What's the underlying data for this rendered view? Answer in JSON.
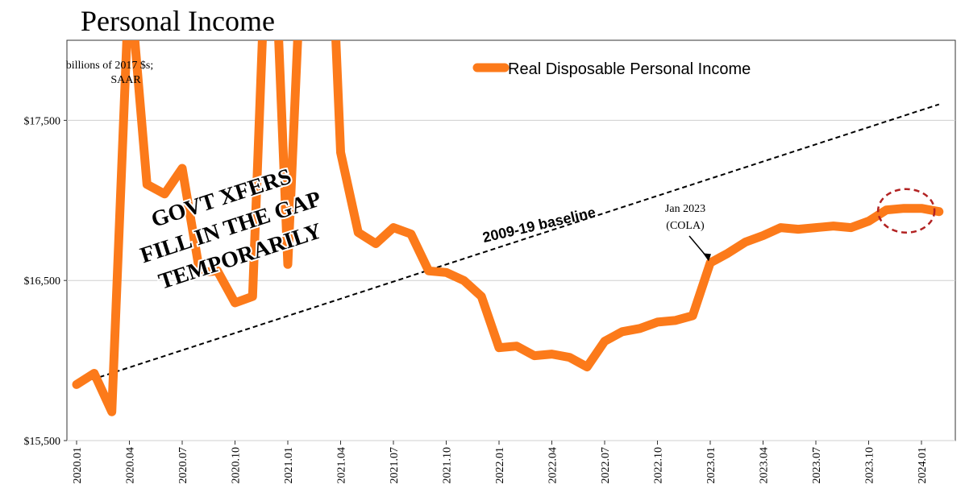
{
  "chart_data": {
    "type": "line",
    "title": "Personal Income",
    "units_note": [
      "billions of 2017 $s;",
      "SAAR"
    ],
    "ylim": [
      15500,
      18000
    ],
    "y_ticks": [
      15500,
      16500,
      17500
    ],
    "y_tick_labels": [
      "$15,500",
      "$16,500",
      "$17,500"
    ],
    "x_tick_labels": [
      "2020.01",
      "2020.04",
      "2020.07",
      "2020.10",
      "2021.01",
      "2021.04",
      "2021.07",
      "2021.10",
      "2022.01",
      "2022.04",
      "2022.07",
      "2022.10",
      "2023.01",
      "2023.04",
      "2023.07",
      "2023.10",
      "2024.01"
    ],
    "grid": "horizontal",
    "legend_position": "top-right",
    "series": [
      {
        "name": "Real Disposable Personal Income",
        "color": "#fc7a1a",
        "x": [
          "2020.01",
          "2020.02",
          "2020.03",
          "2020.04",
          "2020.05",
          "2020.06",
          "2020.07",
          "2020.08",
          "2020.09",
          "2020.10",
          "2020.11",
          "2020.12",
          "2021.01",
          "2021.02",
          "2021.03",
          "2021.04",
          "2021.05",
          "2021.06",
          "2021.07",
          "2021.08",
          "2021.09",
          "2021.10",
          "2021.11",
          "2021.12",
          "2022.01",
          "2022.02",
          "2022.03",
          "2022.04",
          "2022.05",
          "2022.06",
          "2022.07",
          "2022.08",
          "2022.09",
          "2022.10",
          "2022.11",
          "2022.12",
          "2023.01",
          "2023.02",
          "2023.03",
          "2023.04",
          "2023.05",
          "2023.06",
          "2023.07",
          "2023.08",
          "2023.09",
          "2023.10",
          "2023.11",
          "2023.12",
          "2024.01",
          "2024.02"
        ],
        "values": [
          15850,
          15920,
          15680,
          18400,
          17100,
          17040,
          17200,
          16550,
          16560,
          16360,
          16400,
          19300,
          16600,
          19100,
          19900,
          17300,
          16800,
          16730,
          16830,
          16790,
          16560,
          16550,
          16500,
          16400,
          16080,
          16090,
          16030,
          16040,
          16020,
          15960,
          16120,
          16180,
          16200,
          16240,
          16250,
          16280,
          16610,
          16670,
          16740,
          16780,
          16830,
          16820,
          16830,
          16840,
          16830,
          16870,
          16940,
          16950,
          16950,
          16930
        ]
      },
      {
        "name": "2009-19 baseline",
        "style": "dashed",
        "color": "#000000",
        "x": [
          "2020.01",
          "2024.02"
        ],
        "values": [
          15850,
          17600
        ]
      }
    ],
    "annotations": [
      {
        "text": [
          "GOVT XFERS",
          "FILL IN THE GAP",
          "TEMPORARILY"
        ]
      },
      {
        "text": [
          "Jan 2023",
          "(COLA)"
        ],
        "x": "2023.01",
        "y": 16610
      },
      {
        "text": [
          "2009-19 baseline"
        ]
      },
      {
        "marker": "circle",
        "x": "2023.12",
        "y": 16950,
        "color": "#b22222"
      }
    ]
  }
}
